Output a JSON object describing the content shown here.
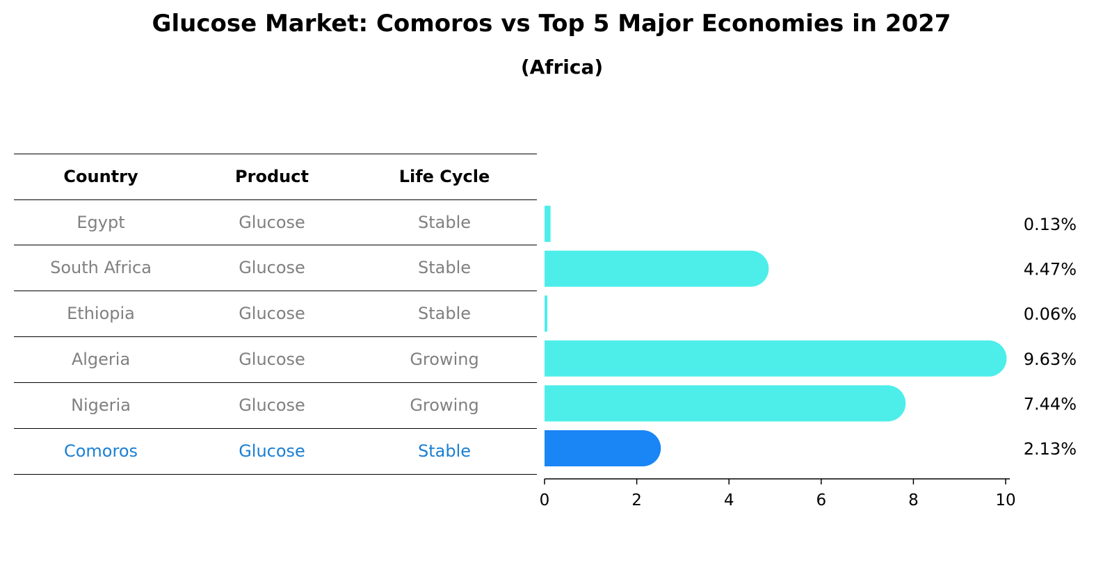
{
  "title": "Glucose Market: Comoros vs Top 5 Major Economies in 2027",
  "subtitle": "(Africa)",
  "table": {
    "headers": [
      "Country",
      "Product",
      "Life Cycle"
    ],
    "rows": [
      {
        "country": "Egypt",
        "product": "Glucose",
        "life_cycle": "Stable"
      },
      {
        "country": "South Africa",
        "product": "Glucose",
        "life_cycle": "Stable"
      },
      {
        "country": "Ethiopia",
        "product": "Glucose",
        "life_cycle": "Stable"
      },
      {
        "country": "Algeria",
        "product": "Glucose",
        "life_cycle": "Growing"
      },
      {
        "country": "Nigeria",
        "product": "Glucose",
        "life_cycle": "Growing"
      },
      {
        "country": "Comoros",
        "product": "Glucose",
        "life_cycle": "Stable"
      }
    ]
  },
  "colors": {
    "bar": "#4deeea",
    "highlight_bar": "#1a85f5",
    "highlight_text": "#1a7fd4",
    "row_text": "#808080"
  },
  "chart_data": {
    "type": "bar",
    "orientation": "horizontal",
    "categories": [
      "Egypt",
      "South Africa",
      "Ethiopia",
      "Algeria",
      "Nigeria",
      "Comoros"
    ],
    "values": [
      0.13,
      4.47,
      0.06,
      9.63,
      7.44,
      2.13
    ],
    "value_labels": [
      "0.13%",
      "4.47%",
      "0.06%",
      "9.63%",
      "7.44%",
      "2.13%"
    ],
    "highlight": "Comoros",
    "xlim": [
      0,
      10
    ],
    "xticks": [
      0,
      2,
      4,
      6,
      8,
      10
    ],
    "grid": false
  }
}
